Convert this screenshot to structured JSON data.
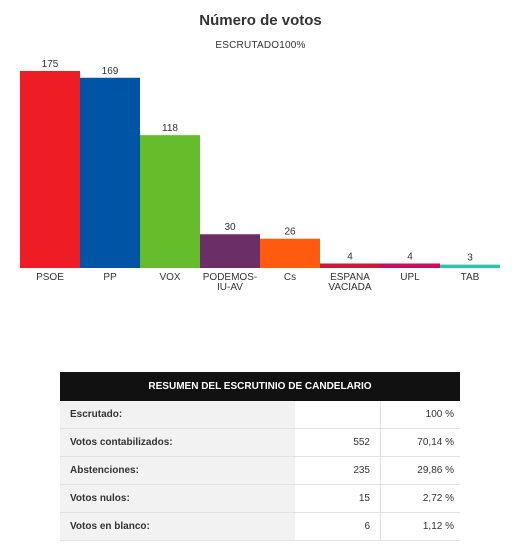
{
  "chart_data": {
    "type": "bar",
    "title": "Número de votos",
    "subtitle": "ESCRUTADO100%",
    "categories": [
      "PSOE",
      "PP",
      "VOX",
      "PODEMOS-IU-AV",
      "Cs",
      "ESPANA VACIADA",
      "UPL",
      "TAB"
    ],
    "category_lines": [
      [
        "PSOE"
      ],
      [
        "PP"
      ],
      [
        "VOX"
      ],
      [
        "PODEMOS-",
        "IU-AV"
      ],
      [
        "Cs"
      ],
      [
        "ESPANA",
        "VACIADA"
      ],
      [
        "UPL"
      ],
      [
        "TAB"
      ]
    ],
    "values": [
      175,
      169,
      118,
      30,
      26,
      4,
      4,
      3
    ],
    "colors": [
      "#ee1c25",
      "#0054a5",
      "#65bd2c",
      "#6b2e67",
      "#ff5b10",
      "#d1163a",
      "#c90d5e",
      "#2ec4b0"
    ],
    "ylim": [
      0,
      175
    ],
    "grid": false,
    "legend": false
  },
  "summary": {
    "title": "RESUMEN DEL ESCRUTINIO DE CANDELARIO",
    "rows": [
      {
        "label": "Escrutado:",
        "count": "",
        "percent": "100 %"
      },
      {
        "label": "Votos contabilizados:",
        "count": "552",
        "percent": "70,14 %"
      },
      {
        "label": "Abstenciones:",
        "count": "235",
        "percent": "29,86 %"
      },
      {
        "label": "Votos nulos:",
        "count": "15",
        "percent": "2,72 %"
      },
      {
        "label": "Votos en blanco:",
        "count": "6",
        "percent": "1,12 %"
      }
    ]
  }
}
